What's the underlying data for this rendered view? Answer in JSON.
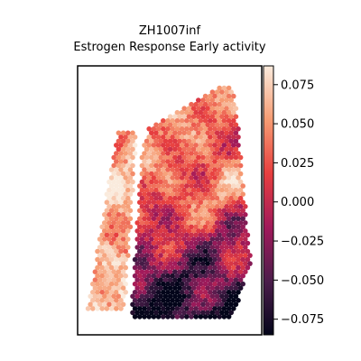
{
  "chart_data": {
    "type": "heatmap",
    "title": "ZH1007inf",
    "subtitle": "Estrogen Response Early activity",
    "xlabel": "",
    "ylabel": "",
    "colorbar": {
      "vmin": -0.085,
      "vmax": 0.087,
      "ticks": [
        0.075,
        0.05,
        0.025,
        0.0,
        -0.025,
        -0.05,
        -0.075
      ],
      "tick_labels": [
        "0.075",
        "0.050",
        "0.025",
        "0.000",
        "−0.025",
        "−0.050",
        "−0.075"
      ],
      "colormap": "rocket"
    },
    "regions": [
      {
        "name": "left strip",
        "mean_activity": 0.04
      },
      {
        "name": "upper right lobe",
        "mean_activity": 0.02
      },
      {
        "name": "lower right lobe",
        "mean_activity": -0.035
      }
    ],
    "grid": false,
    "axes_ticks": false
  },
  "colors": {
    "frame": "#000000",
    "background": "#ffffff",
    "cmap_stops": [
      "#03051a",
      "#4c1d4b",
      "#a11a5b",
      "#e83f3f",
      "#f69c73",
      "#faebdd"
    ]
  }
}
